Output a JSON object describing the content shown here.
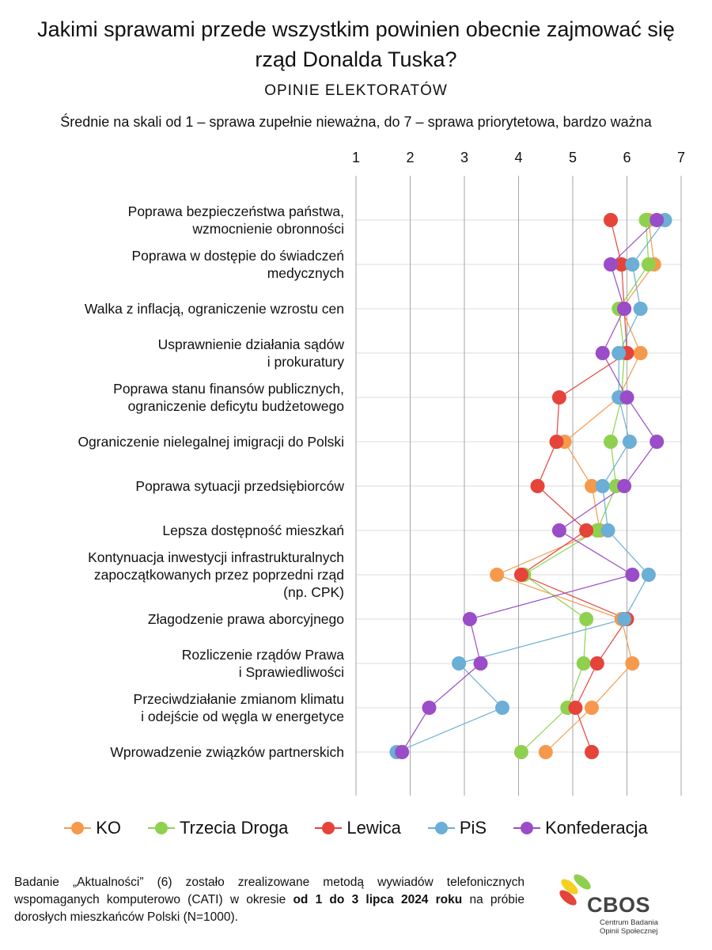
{
  "title": "Jakimi sprawami przede wszystkim powinien obecnie zajmować się rząd Donalda Tuska?",
  "subtitle": "OPINIE ELEKTORATÓW",
  "scale_note": "Średnie na skali od 1 – sprawa zupełnie nieważna, do 7 – sprawa priorytetowa, bardzo ważna",
  "footnote": {
    "part1": "Badanie „Aktualności” (6) zostało zrealizowane metodą wywiadów telefonicznych wspomaganych komputerowo (CATI) w okresie ",
    "bold": "od 1 do 3 lipca 2024 roku",
    "part2": " na próbie dorosłych mieszkańców Polski (N=1000)."
  },
  "logo": {
    "name": "CBOS",
    "line1": "Centrum Badania",
    "line2": "Opinii Społecznej"
  },
  "chart_data": {
    "type": "scatter",
    "orientation": "horizontal",
    "xlim": [
      1,
      7
    ],
    "x_ticks": [
      "1",
      "2",
      "3",
      "4",
      "5",
      "6",
      "7"
    ],
    "grid": true,
    "legend_position": "bottom",
    "categories": [
      [
        "Poprawa bezpieczeństwa państwa,",
        "wzmocnienie obronności"
      ],
      [
        "Poprawa w dostępie do świadczeń",
        "medycznych"
      ],
      [
        "Walka z inflacją, ograniczenie wzrostu cen"
      ],
      [
        "Usprawnienie działania sądów",
        "i prokuratury"
      ],
      [
        "Poprawa stanu finansów publicznych,",
        "ograniczenie deficytu budżetowego"
      ],
      [
        "Ograniczenie nielegalnej imigracji do Polski"
      ],
      [
        "Poprawa sytuacji przedsiębiorców"
      ],
      [
        "Lepsza dostępność mieszkań"
      ],
      [
        "Kontynuacja inwestycji infrastrukturalnych",
        "zapoczątkowanych przez poprzedni rząd",
        "(np. CPK)"
      ],
      [
        "Złagodzenie prawa aborcyjnego"
      ],
      [
        "Rozliczenie rządów Prawa",
        "i Sprawiedliwości"
      ],
      [
        "Przeciwdziałanie zmianom klimatu",
        "i odejście od węgla w energetyce"
      ],
      [
        "Wprowadzenie związków partnerskich"
      ]
    ],
    "series": [
      {
        "name": "KO",
        "color": "#F59A4C",
        "values": [
          6.4,
          6.5,
          5.9,
          6.25,
          5.85,
          4.85,
          5.35,
          5.5,
          3.6,
          5.9,
          6.1,
          5.35,
          4.5
        ]
      },
      {
        "name": "Trzecia Droga",
        "color": "#8FD14F",
        "values": [
          6.35,
          6.4,
          5.85,
          5.95,
          5.9,
          5.7,
          5.8,
          5.45,
          4.1,
          5.25,
          5.2,
          4.9,
          4.05
        ]
      },
      {
        "name": "Lewica",
        "color": "#E5443A",
        "values": [
          5.7,
          5.9,
          5.95,
          6.0,
          4.75,
          4.7,
          4.35,
          5.25,
          4.05,
          6.0,
          5.45,
          5.05,
          5.35
        ]
      },
      {
        "name": "PiS",
        "color": "#6BAED6",
        "values": [
          6.7,
          6.1,
          6.25,
          5.85,
          5.85,
          6.05,
          5.55,
          5.65,
          6.4,
          5.95,
          2.9,
          3.7,
          1.75
        ]
      },
      {
        "name": "Konfederacja",
        "color": "#9B4CC8",
        "values": [
          6.55,
          5.7,
          5.95,
          5.55,
          6.0,
          6.55,
          5.95,
          4.75,
          6.1,
          3.1,
          3.3,
          2.35,
          1.85
        ]
      }
    ]
  }
}
